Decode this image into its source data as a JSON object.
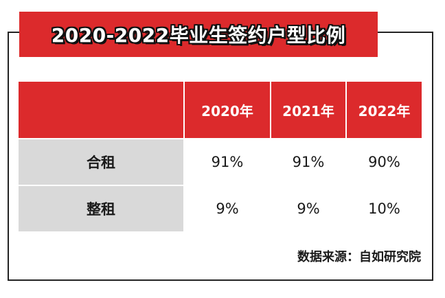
{
  "title": "2020-2022毕业生签约户型比例",
  "chart_data": {
    "type": "table",
    "title": "2020-2022毕业生签约户型比例",
    "columns": [
      "",
      "2020年",
      "2021年",
      "2022年"
    ],
    "rows": [
      {
        "label": "合租",
        "values": [
          "91%",
          "91%",
          "90%"
        ]
      },
      {
        "label": "整租",
        "values": [
          "9%",
          "9%",
          "10%"
        ]
      }
    ]
  },
  "source": "数据来源：自如研究院",
  "colors": {
    "accent": "#dc2a2c",
    "row_label_bg": "#d9d9d9",
    "border": "#222222"
  }
}
